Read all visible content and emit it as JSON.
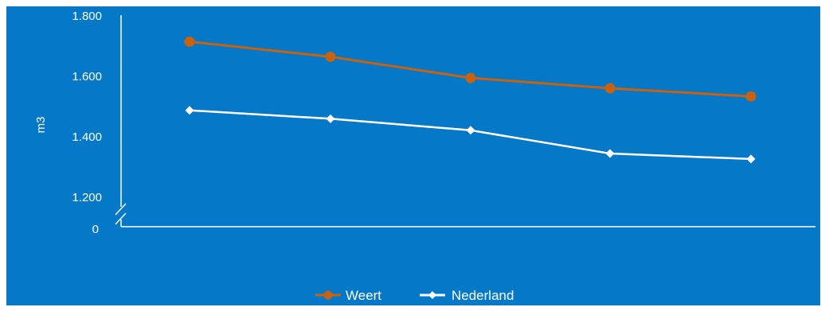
{
  "chart_data": {
    "type": "line",
    "title": "",
    "xlabel": "",
    "ylabel": "m3",
    "y_ticks": [
      "1.800",
      "1.600",
      "1.400",
      "1.200",
      "0"
    ],
    "ylim": [
      1200,
      1800
    ],
    "axis_break": true,
    "grid": false,
    "legend_position": "bottom-center",
    "background_color": "#0578c8",
    "series": [
      {
        "name": "Weert",
        "color": "#c8620f",
        "marker": "circle",
        "values": [
          1712,
          1662,
          1592,
          1558,
          1531
        ]
      },
      {
        "name": "Nederland",
        "color": "#ffffff",
        "marker": "diamond",
        "values": [
          1485,
          1457,
          1419,
          1342,
          1324
        ]
      }
    ]
  }
}
